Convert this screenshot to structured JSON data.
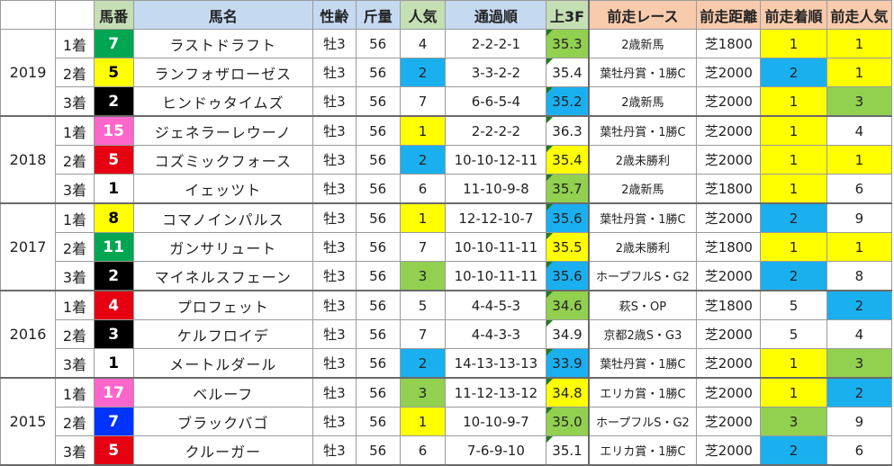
{
  "headers": [
    "",
    "",
    "馬番",
    "馬名",
    "性齢",
    "斤量",
    "人気",
    "通過順",
    "上3F",
    "前走レース",
    "前走距離",
    "前走着順",
    "前走人気"
  ],
  "colors": {
    "gate": {
      "1": "#ffffff",
      "2": "#000000",
      "3": "#e60012",
      "4": "#0033ff",
      "5": "#ffff00",
      "6": "#00a651",
      "7": "#ff8c00",
      "8": "#ff66cc"
    },
    "gate_text": {
      "1": "#000000",
      "2": "#ffffff",
      "3": "#ffffff",
      "4": "#ffffff",
      "5": "#000000",
      "6": "#ffffff",
      "7": "#000000",
      "8": "#ffffff"
    },
    "fill": {
      "yellow": "#ffff00",
      "blue": "#1ab0f0",
      "green": "#92d050",
      "none": "#ffffff"
    }
  },
  "years": [
    {
      "year": "2019",
      "rows": [
        {
          "rank": "1着",
          "num": "7",
          "gate": "6",
          "name": "ラストドラフト",
          "sex_age": "牡3",
          "weight": "56",
          "pop": "4",
          "pop_fill": "none",
          "passing": "2-2-2-1",
          "last3f": "35.3",
          "f3_fill": "green",
          "prev_race": "2歳新馬",
          "prev_dist": "芝1800",
          "prev_rank": "1",
          "prev_rank_fill": "yellow",
          "prev_pop": "1",
          "prev_pop_fill": "yellow"
        },
        {
          "rank": "2着",
          "num": "5",
          "gate": "5",
          "name": "ランフォザローゼス",
          "sex_age": "牡3",
          "weight": "56",
          "pop": "2",
          "pop_fill": "blue",
          "passing": "3-3-2-2",
          "last3f": "35.4",
          "f3_fill": "none",
          "prev_race": "葉牡丹賞・1勝C",
          "prev_dist": "芝2000",
          "prev_rank": "2",
          "prev_rank_fill": "blue",
          "prev_pop": "1",
          "prev_pop_fill": "yellow"
        },
        {
          "rank": "3着",
          "num": "2",
          "gate": "2",
          "name": "ヒンドゥタイムズ",
          "sex_age": "牡3",
          "weight": "56",
          "pop": "7",
          "pop_fill": "none",
          "passing": "6-6-5-4",
          "last3f": "35.2",
          "f3_fill": "blue",
          "prev_race": "2歳新馬",
          "prev_dist": "芝2000",
          "prev_rank": "1",
          "prev_rank_fill": "yellow",
          "prev_pop": "3",
          "prev_pop_fill": "green"
        }
      ]
    },
    {
      "year": "2018",
      "rows": [
        {
          "rank": "1着",
          "num": "15",
          "gate": "8",
          "name": "ジェネラーレウーノ",
          "sex_age": "牡3",
          "weight": "56",
          "pop": "1",
          "pop_fill": "yellow",
          "passing": "2-2-2-2",
          "last3f": "36.3",
          "f3_fill": "none",
          "prev_race": "葉牡丹賞・1勝C",
          "prev_dist": "芝2000",
          "prev_rank": "1",
          "prev_rank_fill": "yellow",
          "prev_pop": "4",
          "prev_pop_fill": "none"
        },
        {
          "rank": "2着",
          "num": "5",
          "gate": "3",
          "name": "コズミックフォース",
          "sex_age": "牡3",
          "weight": "56",
          "pop": "2",
          "pop_fill": "blue",
          "passing": "10-10-12-11",
          "last3f": "35.4",
          "f3_fill": "yellow",
          "prev_race": "2歳未勝利",
          "prev_dist": "芝2000",
          "prev_rank": "1",
          "prev_rank_fill": "yellow",
          "prev_pop": "1",
          "prev_pop_fill": "yellow"
        },
        {
          "rank": "3着",
          "num": "1",
          "gate": "1",
          "name": "イェッツト",
          "sex_age": "牡3",
          "weight": "56",
          "pop": "6",
          "pop_fill": "none",
          "passing": "11-10-9-8",
          "last3f": "35.7",
          "f3_fill": "green",
          "prev_race": "2歳新馬",
          "prev_dist": "芝1800",
          "prev_rank": "1",
          "prev_rank_fill": "yellow",
          "prev_pop": "6",
          "prev_pop_fill": "none"
        }
      ]
    },
    {
      "year": "2017",
      "rows": [
        {
          "rank": "1着",
          "num": "8",
          "gate": "5",
          "name": "コマノインパルス",
          "sex_age": "牡3",
          "weight": "56",
          "pop": "1",
          "pop_fill": "yellow",
          "passing": "12-12-10-7",
          "last3f": "35.6",
          "f3_fill": "blue",
          "prev_race": "葉牡丹賞・1勝C",
          "prev_dist": "芝2000",
          "prev_rank": "2",
          "prev_rank_fill": "blue",
          "prev_pop": "9",
          "prev_pop_fill": "none"
        },
        {
          "rank": "2着",
          "num": "11",
          "gate": "6",
          "name": "ガンサリュート",
          "sex_age": "牡3",
          "weight": "56",
          "pop": "7",
          "pop_fill": "none",
          "passing": "10-10-11-11",
          "last3f": "35.5",
          "f3_fill": "yellow",
          "prev_race": "2歳未勝利",
          "prev_dist": "芝1800",
          "prev_rank": "1",
          "prev_rank_fill": "yellow",
          "prev_pop": "1",
          "prev_pop_fill": "yellow"
        },
        {
          "rank": "3着",
          "num": "2",
          "gate": "2",
          "name": "マイネルスフェーン",
          "sex_age": "牡3",
          "weight": "56",
          "pop": "3",
          "pop_fill": "green",
          "passing": "10-10-11-11",
          "last3f": "35.6",
          "f3_fill": "blue",
          "prev_race": "ホープフルS・G2",
          "prev_dist": "芝2000",
          "prev_rank": "2",
          "prev_rank_fill": "blue",
          "prev_pop": "8",
          "prev_pop_fill": "none"
        }
      ]
    },
    {
      "year": "2016",
      "rows": [
        {
          "rank": "1着",
          "num": "4",
          "gate": "3",
          "name": "プロフェット",
          "sex_age": "牡3",
          "weight": "56",
          "pop": "5",
          "pop_fill": "none",
          "passing": "4-4-5-3",
          "last3f": "34.6",
          "f3_fill": "green",
          "prev_race": "萩S・OP",
          "prev_dist": "芝1800",
          "prev_rank": "5",
          "prev_rank_fill": "none",
          "prev_pop": "2",
          "prev_pop_fill": "blue"
        },
        {
          "rank": "2着",
          "num": "3",
          "gate": "2",
          "name": "ケルフロイデ",
          "sex_age": "牡3",
          "weight": "56",
          "pop": "7",
          "pop_fill": "none",
          "passing": "4-4-3-3",
          "last3f": "34.9",
          "f3_fill": "none",
          "prev_race": "京都2歳S・G3",
          "prev_dist": "芝2000",
          "prev_rank": "5",
          "prev_rank_fill": "none",
          "prev_pop": "4",
          "prev_pop_fill": "none"
        },
        {
          "rank": "3着",
          "num": "1",
          "gate": "1",
          "name": "メートルダール",
          "sex_age": "牡3",
          "weight": "56",
          "pop": "2",
          "pop_fill": "blue",
          "passing": "14-13-13-13",
          "last3f": "33.9",
          "f3_fill": "blue",
          "prev_race": "葉牡丹賞・1勝C",
          "prev_dist": "芝2000",
          "prev_rank": "1",
          "prev_rank_fill": "yellow",
          "prev_pop": "3",
          "prev_pop_fill": "green"
        }
      ]
    },
    {
      "year": "2015",
      "rows": [
        {
          "rank": "1着",
          "num": "17",
          "gate": "8",
          "name": "ベルーフ",
          "sex_age": "牡3",
          "weight": "56",
          "pop": "3",
          "pop_fill": "green",
          "passing": "11-12-13-12",
          "last3f": "34.8",
          "f3_fill": "yellow",
          "prev_race": "エリカ賞・1勝C",
          "prev_dist": "芝2000",
          "prev_rank": "1",
          "prev_rank_fill": "yellow",
          "prev_pop": "2",
          "prev_pop_fill": "blue"
        },
        {
          "rank": "2着",
          "num": "7",
          "gate": "4",
          "name": "ブラックバゴ",
          "sex_age": "牡3",
          "weight": "56",
          "pop": "1",
          "pop_fill": "yellow",
          "passing": "10-10-9-7",
          "last3f": "35.0",
          "f3_fill": "green",
          "prev_race": "ホープフルS・G2",
          "prev_dist": "芝2000",
          "prev_rank": "3",
          "prev_rank_fill": "green",
          "prev_pop": "9",
          "prev_pop_fill": "none"
        },
        {
          "rank": "3着",
          "num": "5",
          "gate": "3",
          "name": "クルーガー",
          "sex_age": "牡3",
          "weight": "56",
          "pop": "6",
          "pop_fill": "none",
          "passing": "7-6-9-10",
          "last3f": "35.1",
          "f3_fill": "none",
          "prev_race": "エリカ賞・1勝C",
          "prev_dist": "芝2000",
          "prev_rank": "2",
          "prev_rank_fill": "blue",
          "prev_pop": "6",
          "prev_pop_fill": "none"
        }
      ]
    }
  ]
}
